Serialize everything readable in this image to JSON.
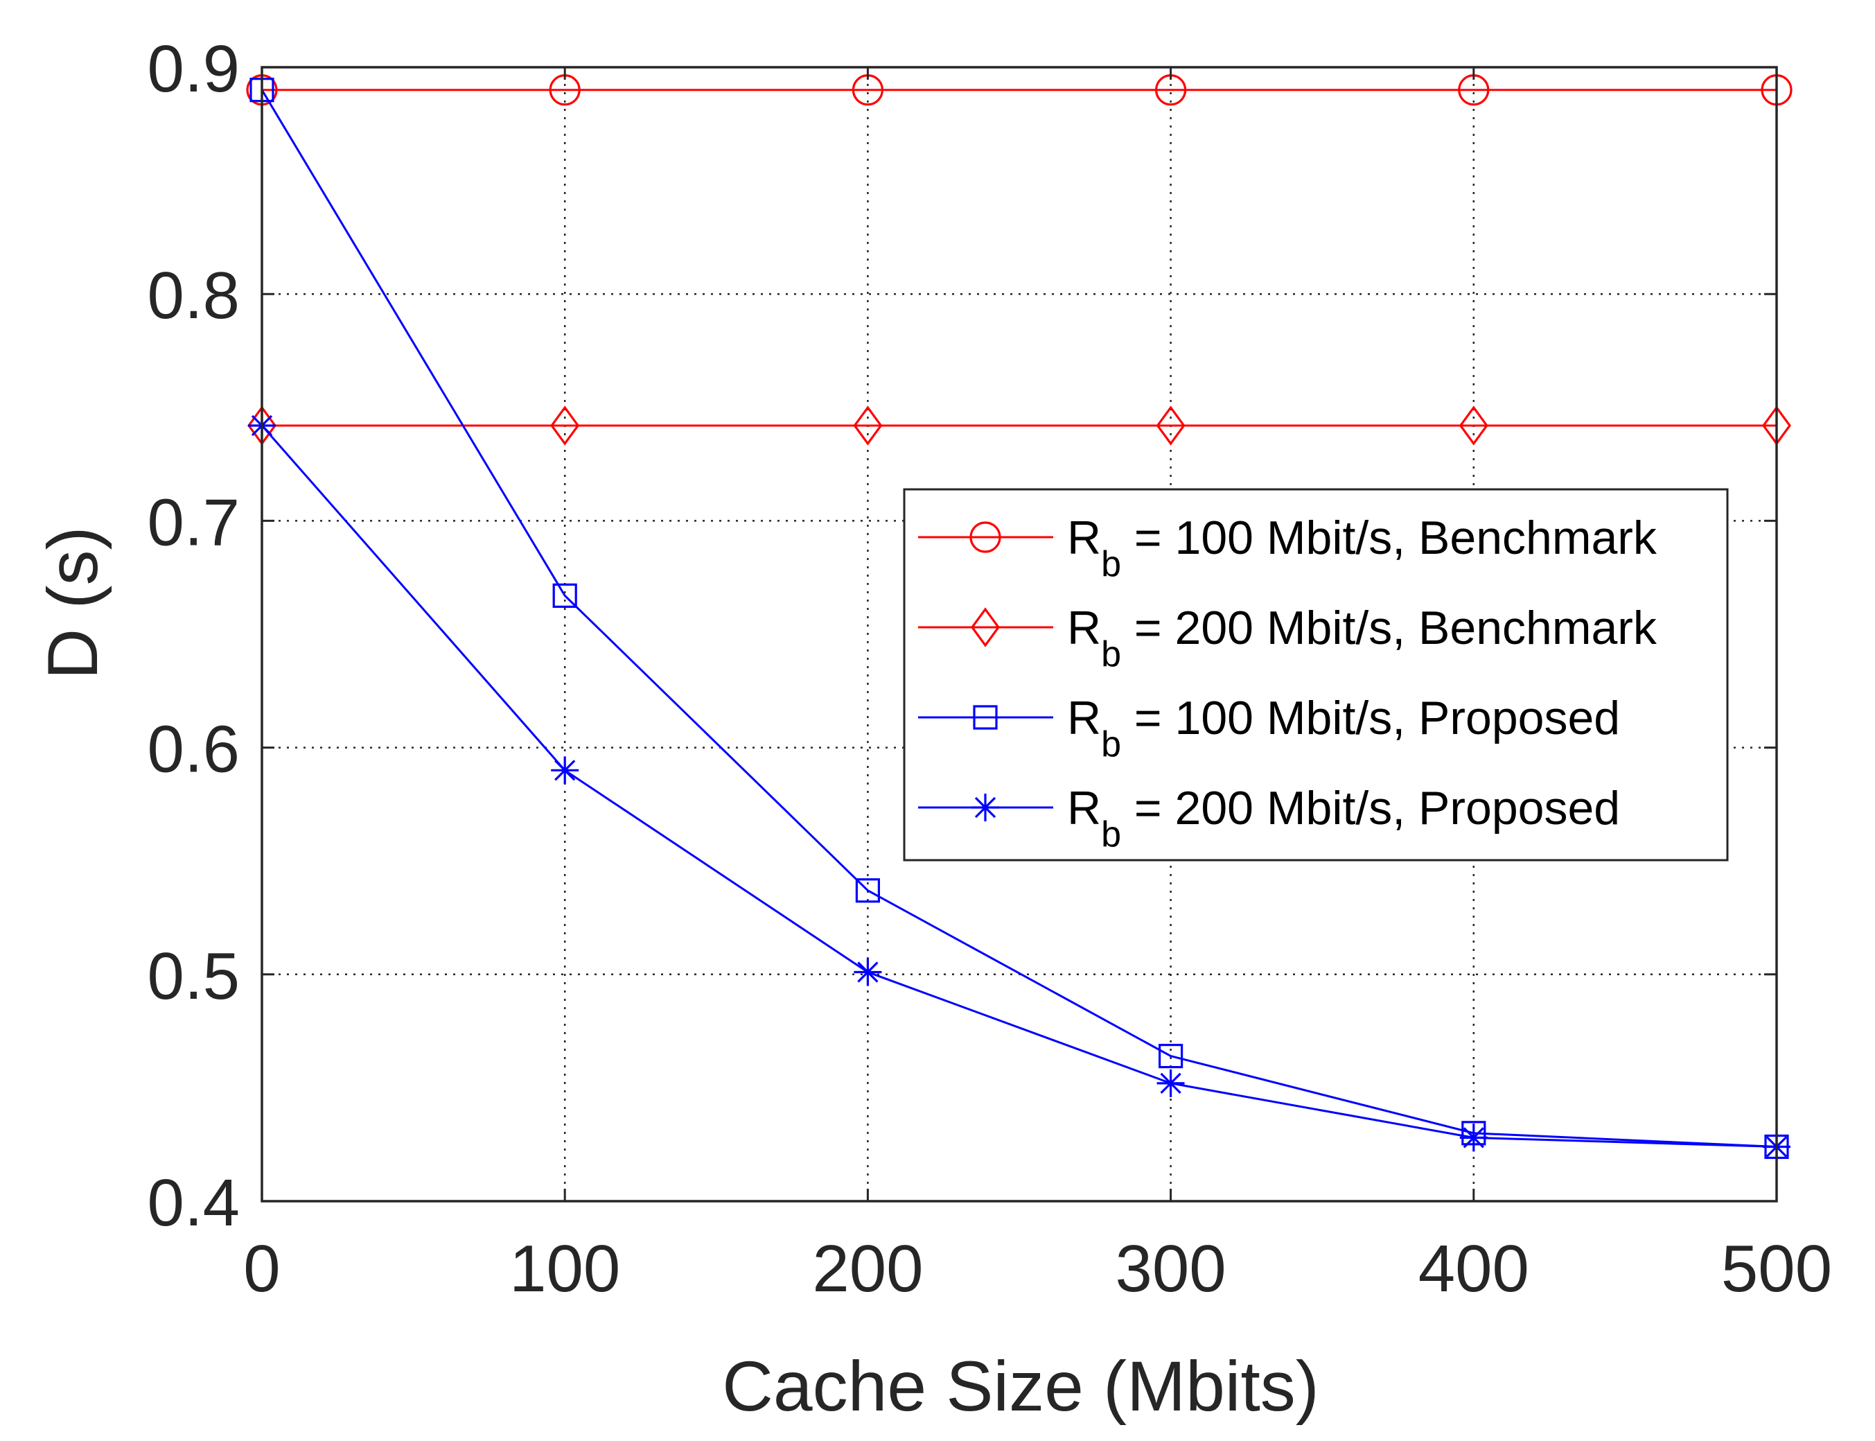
{
  "chart_data": {
    "type": "line",
    "title": "",
    "xlabel": "Cache Size (Mbits)",
    "ylabel": "D (s)",
    "xlim": [
      0,
      500
    ],
    "ylim": [
      0.4,
      0.9
    ],
    "grid": true,
    "legend_position": "center-right",
    "x": [
      0,
      100,
      200,
      300,
      400,
      500
    ],
    "x_ticks": [
      "0",
      "100",
      "200",
      "300",
      "400",
      "500"
    ],
    "y_ticks": [
      "0.4",
      "0.5",
      "0.6",
      "0.7",
      "0.8",
      "0.9"
    ],
    "series": [
      {
        "name_main": "R",
        "name_sub": "b",
        "name_rest": " = 100 Mbit/s, Benchmark",
        "color": "#ff0000",
        "marker": "circle",
        "values": [
          0.89,
          0.89,
          0.89,
          0.89,
          0.89,
          0.89
        ]
      },
      {
        "name_main": "R",
        "name_sub": "b",
        "name_rest": " = 200 Mbit/s, Benchmark",
        "color": "#ff0000",
        "marker": "diamond",
        "values": [
          0.742,
          0.742,
          0.742,
          0.742,
          0.742,
          0.742
        ]
      },
      {
        "name_main": "R",
        "name_sub": "b",
        "name_rest": " = 100 Mbit/s, Proposed",
        "color": "#0000ff",
        "marker": "square",
        "values": [
          0.89,
          0.667,
          0.537,
          0.464,
          0.43,
          0.424
        ]
      },
      {
        "name_main": "R",
        "name_sub": "b",
        "name_rest": " = 200 Mbit/s, Proposed",
        "color": "#0000ff",
        "marker": "asterisk",
        "values": [
          0.742,
          0.59,
          0.501,
          0.452,
          0.428,
          0.424
        ]
      }
    ]
  }
}
